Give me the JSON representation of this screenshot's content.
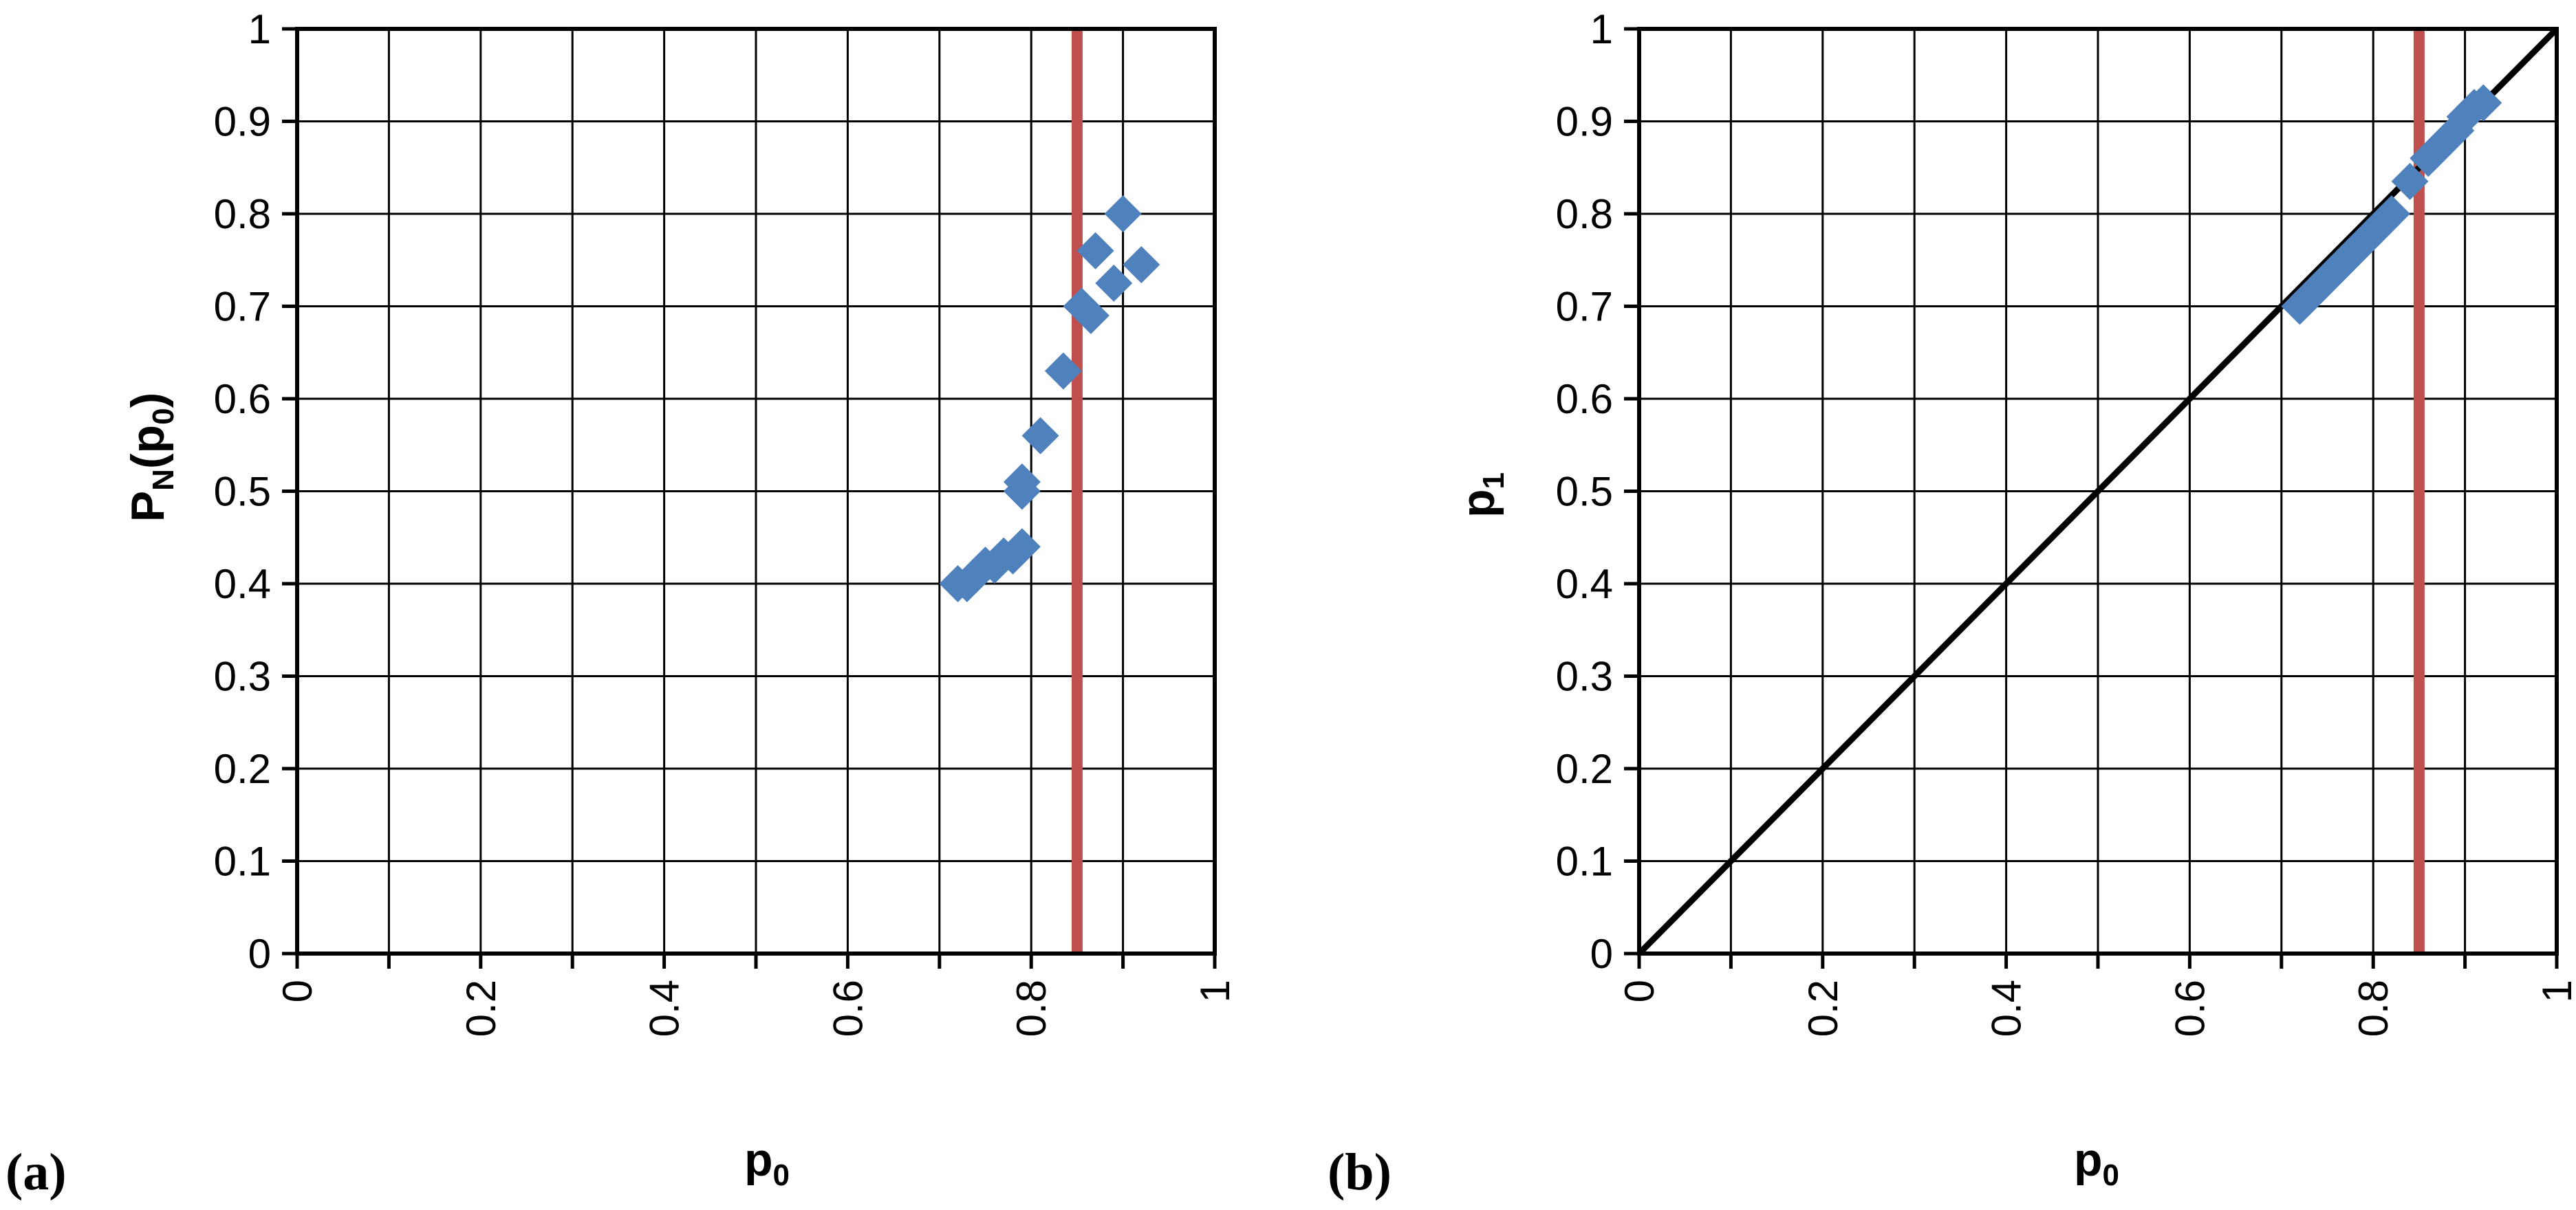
{
  "colors": {
    "marker": "#4f81bd",
    "threshold": "#c0504d",
    "diagonal": "#000000",
    "grid": "#000000"
  },
  "chart_data": [
    {
      "type": "scatter",
      "panel_label": "(a)",
      "xlabel": {
        "main": "p",
        "sub": "0"
      },
      "ylabel": {
        "main": "P",
        "sub1": "N",
        "mid": "(p",
        "sub2": "0",
        "end": ")"
      },
      "xlim": [
        0,
        1
      ],
      "ylim": [
        0,
        1
      ],
      "x_ticks": [
        "0",
        "0.2",
        "0.4",
        "0.6",
        "0.8",
        "1"
      ],
      "y_ticks": [
        "0",
        "0.1",
        "0.2",
        "0.3",
        "0.4",
        "0.5",
        "0.6",
        "0.7",
        "0.8",
        "0.9",
        "1"
      ],
      "grid": true,
      "marker": "diamond",
      "vertical_line_x": 0.85,
      "points": [
        [
          0.72,
          0.4
        ],
        [
          0.73,
          0.4
        ],
        [
          0.74,
          0.41
        ],
        [
          0.75,
          0.42
        ],
        [
          0.76,
          0.42
        ],
        [
          0.77,
          0.43
        ],
        [
          0.78,
          0.43
        ],
        [
          0.79,
          0.44
        ],
        [
          0.79,
          0.5
        ],
        [
          0.79,
          0.51
        ],
        [
          0.81,
          0.56
        ],
        [
          0.835,
          0.63
        ],
        [
          0.855,
          0.7
        ],
        [
          0.865,
          0.69
        ],
        [
          0.87,
          0.76
        ],
        [
          0.89,
          0.725
        ],
        [
          0.9,
          0.8
        ],
        [
          0.92,
          0.745
        ]
      ]
    },
    {
      "type": "scatter",
      "panel_label": "(b)",
      "xlabel": {
        "main": "p",
        "sub": "0"
      },
      "ylabel": {
        "main": "p",
        "sub": "1"
      },
      "xlim": [
        0,
        1
      ],
      "ylim": [
        0,
        1
      ],
      "x_ticks": [
        "0",
        "0.2",
        "0.4",
        "0.6",
        "0.8",
        "1"
      ],
      "y_ticks": [
        "0",
        "0.1",
        "0.2",
        "0.3",
        "0.4",
        "0.5",
        "0.6",
        "0.7",
        "0.8",
        "0.9",
        "1"
      ],
      "grid": true,
      "marker": "diamond",
      "vertical_line_x": 0.85,
      "diagonal": true,
      "points": [
        [
          0.72,
          0.7
        ],
        [
          0.73,
          0.71
        ],
        [
          0.74,
          0.72
        ],
        [
          0.75,
          0.73
        ],
        [
          0.76,
          0.74
        ],
        [
          0.77,
          0.75
        ],
        [
          0.78,
          0.76
        ],
        [
          0.79,
          0.77
        ],
        [
          0.8,
          0.78
        ],
        [
          0.81,
          0.79
        ],
        [
          0.82,
          0.8
        ],
        [
          0.84,
          0.835
        ],
        [
          0.86,
          0.86
        ],
        [
          0.87,
          0.87
        ],
        [
          0.88,
          0.88
        ],
        [
          0.89,
          0.89
        ],
        [
          0.9,
          0.905
        ],
        [
          0.91,
          0.915
        ],
        [
          0.92,
          0.92
        ]
      ]
    }
  ]
}
